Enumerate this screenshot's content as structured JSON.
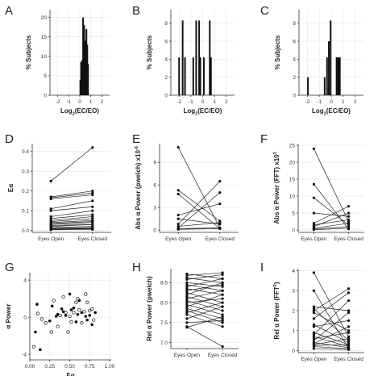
{
  "chart_data": [
    {
      "panel": "A",
      "type": "bar",
      "xlabel": "Log2(EC/EO)",
      "ylabel": "% Subjects",
      "xlim": [
        -2.7,
        2.7
      ],
      "ylim": [
        0,
        22
      ],
      "xticks": [
        -2,
        -1,
        0,
        1,
        2
      ],
      "xtick_labels": [
        "-2",
        "-1",
        "0",
        "1",
        "2"
      ],
      "yticks": [
        0,
        5,
        10,
        15,
        20
      ],
      "ytick_labels": [
        "0",
        "5",
        "10",
        "15",
        "20"
      ],
      "bar_width": 0.06,
      "x": [
        0.05,
        0.12,
        0.2,
        0.3,
        0.4,
        0.5,
        0.6,
        0.68,
        0.75
      ],
      "values": [
        4,
        8.5,
        9,
        20,
        18,
        14,
        17,
        13,
        8
      ]
    },
    {
      "panel": "B",
      "type": "bar",
      "xlabel": "Log2(EC/EO)",
      "ylabel": "% Subjects",
      "xlim": [
        -2.7,
        2.7
      ],
      "ylim": [
        0,
        9.5
      ],
      "xticks": [
        -2,
        -1,
        0,
        1,
        2
      ],
      "xtick_labels": [
        "-2",
        "-1",
        "0",
        "1",
        "2"
      ],
      "yticks": [
        0,
        2,
        4,
        6,
        8
      ],
      "ytick_labels": [
        "0",
        "2",
        "4",
        "6",
        "8"
      ],
      "bar_width": 0.06,
      "x": [
        -2.0,
        -1.7,
        -1.5,
        -0.8,
        -0.55,
        -0.3,
        -0.2,
        0.1,
        0.6,
        0.7
      ],
      "values": [
        4.2,
        8.3,
        4.2,
        4.2,
        8.3,
        8.3,
        4.2,
        4.2,
        8.3,
        4.2
      ]
    },
    {
      "panel": "C",
      "type": "bar",
      "xlabel": "Log2(EC/EO)",
      "ylabel": "% Subjects",
      "xlim": [
        -2.7,
        2.7
      ],
      "ylim": [
        0,
        9.5
      ],
      "xticks": [
        -2,
        -1,
        0,
        1,
        2
      ],
      "xtick_labels": [
        "-2",
        "-1",
        "0",
        "1",
        "2"
      ],
      "yticks": [
        0,
        2,
        4,
        6,
        8
      ],
      "ytick_labels": [
        "0",
        "2",
        "4",
        "6",
        "8"
      ],
      "bar_width": 0.06,
      "x": [
        -1.95,
        -0.55,
        -0.35,
        -0.2,
        -0.05,
        0.45,
        0.55,
        0.62,
        0.72
      ],
      "values": [
        2,
        2,
        4.2,
        6,
        8.3,
        4.2,
        4.2,
        4.2,
        4.2
      ]
    },
    {
      "panel": "D",
      "type": "line",
      "ylabel": "Eα",
      "categories": [
        "Eyes Open",
        "Eyes Closed"
      ],
      "ylim": [
        -0.01,
        0.44
      ],
      "yticks": [
        0.0,
        0.1,
        0.2,
        0.3,
        0.4
      ],
      "ytick_labels": [
        "0.0",
        "0.1",
        "0.2",
        "0.3",
        "0.4"
      ],
      "pairs": [
        [
          0.25,
          0.42
        ],
        [
          0.17,
          0.2
        ],
        [
          0.165,
          0.19
        ],
        [
          0.16,
          0.18
        ],
        [
          0.11,
          0.15
        ],
        [
          0.1,
          0.12
        ],
        [
          0.07,
          0.1
        ],
        [
          0.06,
          0.08
        ],
        [
          0.05,
          0.07
        ],
        [
          0.045,
          0.06
        ],
        [
          0.04,
          0.05
        ],
        [
          0.035,
          0.045
        ],
        [
          0.03,
          0.04
        ],
        [
          0.025,
          0.03
        ],
        [
          0.02,
          0.03
        ],
        [
          0.015,
          0.02
        ],
        [
          0.01,
          0.015
        ],
        [
          0.008,
          0.01
        ],
        [
          0.005,
          0.008
        ],
        [
          0.003,
          0.005
        ]
      ]
    },
    {
      "panel": "E",
      "type": "line",
      "ylabel": "Abs α Power (pwelch) x10",
      "ylabel_exp": "-6",
      "categories": [
        "Eyes Open",
        "Eyes Closed"
      ],
      "ylim": [
        -0.3,
        11.5
      ],
      "yticks": [
        0,
        3,
        6,
        9
      ],
      "ytick_labels": [
        "0",
        "3",
        "6",
        "9"
      ],
      "pairs": [
        [
          11.0,
          0.3
        ],
        [
          5.3,
          1.2
        ],
        [
          4.8,
          0.2
        ],
        [
          2.0,
          3.5
        ],
        [
          1.5,
          0.8
        ],
        [
          0.8,
          6.5
        ],
        [
          0.5,
          1.0
        ],
        [
          0.3,
          5.0
        ],
        [
          0.2,
          0.3
        ],
        [
          0.1,
          0.2
        ]
      ]
    },
    {
      "panel": "F",
      "type": "line",
      "ylabel": "Abs α Power  (FFT) x10",
      "ylabel_exp": "3",
      "categories": [
        "Eyes Open",
        "Eyes Closed"
      ],
      "ylim": [
        -0.7,
        25.5
      ],
      "yticks": [
        0,
        5,
        10,
        15,
        20,
        25
      ],
      "ytick_labels": [
        "0",
        "5",
        "10",
        "15",
        "20",
        "25"
      ],
      "pairs": [
        [
          24.0,
          2.5
        ],
        [
          13.5,
          0.3
        ],
        [
          9.5,
          1.5
        ],
        [
          5.0,
          4.0
        ],
        [
          2.0,
          7.0
        ],
        [
          1.5,
          3.0
        ],
        [
          1.0,
          5.0
        ],
        [
          0.5,
          2.0
        ],
        [
          0.3,
          1.0
        ],
        [
          0.1,
          0.5
        ]
      ]
    },
    {
      "panel": "G",
      "type": "scatter",
      "xlabel": "Eα",
      "ylabel": "α Power",
      "xlim": [
        0.0,
        1.02
      ],
      "ylim": [
        -4.6,
        4.8
      ],
      "xticks": [
        0.0,
        0.25,
        0.5,
        0.75,
        1.0
      ],
      "xtick_labels": [
        "0.00",
        "0.25",
        "0.50",
        "0.75",
        "1.00"
      ],
      "yticks": [
        -4,
        0,
        4
      ],
      "ytick_labels": [
        "-4",
        "0",
        "4"
      ],
      "series": [
        {
          "marker": "filled",
          "points": [
            [
              0.07,
              -1.6
            ],
            [
              0.09,
              1.4
            ],
            [
              0.13,
              -3.5
            ],
            [
              0.25,
              -0.4
            ],
            [
              0.28,
              1.2
            ],
            [
              0.33,
              0.1
            ],
            [
              0.35,
              0.3
            ],
            [
              0.4,
              0.9
            ],
            [
              0.42,
              0.6
            ],
            [
              0.45,
              0.2
            ],
            [
              0.5,
              2.5
            ],
            [
              0.52,
              0.8
            ],
            [
              0.55,
              1.0
            ],
            [
              0.58,
              -0.5
            ],
            [
              0.6,
              0.3
            ],
            [
              0.62,
              1.8
            ],
            [
              0.65,
              0.5
            ],
            [
              0.7,
              0.1
            ],
            [
              0.72,
              -0.3
            ],
            [
              0.75,
              0.2
            ],
            [
              0.78,
              -0.8
            ],
            [
              0.82,
              0.5
            ]
          ]
        },
        {
          "marker": "open",
          "points": [
            [
              0.05,
              -3.2
            ],
            [
              0.1,
              0.4
            ],
            [
              0.15,
              -0.2
            ],
            [
              0.2,
              -0.6
            ],
            [
              0.27,
              -1.6
            ],
            [
              0.3,
              1.8
            ],
            [
              0.35,
              -1.0
            ],
            [
              0.38,
              0.2
            ],
            [
              0.42,
              2.2
            ],
            [
              0.45,
              0.5
            ],
            [
              0.48,
              -1.6
            ],
            [
              0.5,
              0.1
            ],
            [
              0.52,
              -0.5
            ],
            [
              0.55,
              0.5
            ],
            [
              0.58,
              1.6
            ],
            [
              0.6,
              2.0
            ],
            [
              0.62,
              0.8
            ],
            [
              0.65,
              -0.6
            ],
            [
              0.68,
              0.6
            ],
            [
              0.7,
              2.5
            ],
            [
              0.72,
              1.6
            ],
            [
              0.75,
              0.7
            ],
            [
              0.78,
              0.9
            ],
            [
              0.8,
              -0.3
            ]
          ]
        }
      ]
    },
    {
      "panel": "H",
      "type": "line",
      "ylabel": "Rel α Power (pwelch)",
      "categories": [
        "Eyes Open",
        "Eyes Closed"
      ],
      "ylim": [
        6.85,
        8.85
      ],
      "yticks": [
        7.0,
        7.5,
        8.0,
        8.5
      ],
      "ytick_labels": [
        "7.0",
        "7.5",
        "8.0",
        "8.5"
      ],
      "pairs": [
        [
          8.72,
          8.6
        ],
        [
          8.68,
          8.75
        ],
        [
          8.62,
          8.5
        ],
        [
          8.58,
          8.7
        ],
        [
          8.5,
          8.4
        ],
        [
          8.45,
          8.3
        ],
        [
          8.4,
          8.6
        ],
        [
          8.35,
          8.2
        ],
        [
          8.3,
          8.45
        ],
        [
          8.25,
          8.0
        ],
        [
          8.2,
          8.5
        ],
        [
          8.15,
          7.9
        ],
        [
          8.1,
          8.3
        ],
        [
          8.05,
          7.8
        ],
        [
          8.0,
          8.1
        ],
        [
          7.95,
          7.7
        ],
        [
          7.9,
          8.2
        ],
        [
          7.85,
          7.6
        ],
        [
          7.8,
          7.5
        ],
        [
          7.75,
          8.0
        ],
        [
          7.7,
          7.4
        ],
        [
          7.6,
          7.9
        ],
        [
          7.5,
          7.55
        ],
        [
          7.4,
          6.9
        ],
        [
          7.38,
          7.65
        ]
      ]
    },
    {
      "panel": "I",
      "type": "line",
      "ylabel": "Rel α Power  (FFT",
      "ylabel_exp": "2",
      "ylabel_suffix": ")",
      "categories": [
        "Eyes Open",
        "Eyes Closed"
      ],
      "ylim": [
        -0.1,
        4.1
      ],
      "yticks": [
        0,
        1,
        2,
        3,
        4
      ],
      "ytick_labels": [
        "0",
        "1",
        "2",
        "3",
        "4"
      ],
      "pairs": [
        [
          3.9,
          0.7
        ],
        [
          3.0,
          0.1
        ],
        [
          2.2,
          2.0
        ],
        [
          2.1,
          0.5
        ],
        [
          2.0,
          3.1
        ],
        [
          1.9,
          1.0
        ],
        [
          1.6,
          2.9
        ],
        [
          1.3,
          0.4
        ],
        [
          1.2,
          1.5
        ],
        [
          0.9,
          0.3
        ],
        [
          0.8,
          2.5
        ],
        [
          0.7,
          0.2
        ],
        [
          0.6,
          0.9
        ],
        [
          0.5,
          1.9
        ],
        [
          0.4,
          0.15
        ],
        [
          0.35,
          1.2
        ],
        [
          0.3,
          0.6
        ],
        [
          0.25,
          0.3
        ],
        [
          0.2,
          0.1
        ],
        [
          0.1,
          0.05
        ]
      ]
    }
  ]
}
